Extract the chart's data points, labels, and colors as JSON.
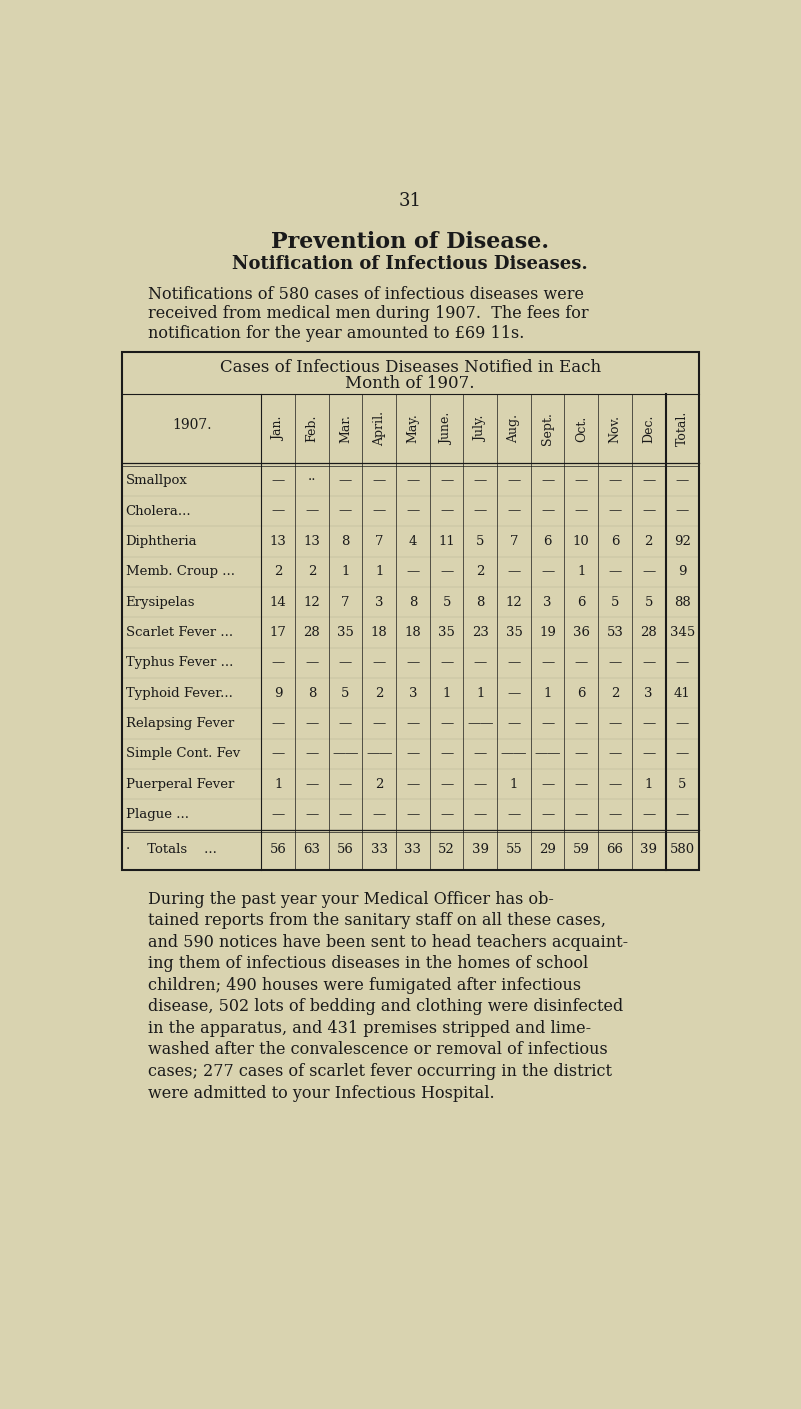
{
  "page_number": "31",
  "title1": "Prevention of Disease.",
  "title2": "Notification of Infectious Diseases.",
  "intro_text": "Notifications of 580 cases of infectious diseases were\nreceived from medical men during 1907.  The fees for\nnotification for the year amounted to £69 11s.",
  "table_title1": "Cases of Infectious Diseases Notified in Each",
  "table_title2": "Month of 1907.",
  "col_header_row": "1907.",
  "col_headers": [
    "Jan.",
    "Feb.",
    "Mar.",
    "April.",
    "May.",
    "June.",
    "July.",
    "Aug.",
    "Sept.",
    "Oct.",
    "Nov.",
    "Dec.",
    "Total."
  ],
  "disease_names_left": [
    "Smallpox",
    "Cholera...",
    "Diphtheria",
    "Memb. Croup ...",
    "Erysipelas",
    "Scarlet Fever ...",
    "Typhus Fever ...",
    "Typhoid Fever...",
    "Relapsing Fever",
    "Simple Cont. Fev",
    "Puerperal Fever",
    "Plague ..."
  ],
  "disease_dots": [
    "...",
    "",
    "...",
    "",
    "...",
    "",
    "",
    "",
    "",
    "",
    "",
    "   ..."
  ],
  "data": [
    [
      "—",
      "··",
      "—",
      "—",
      "—",
      "—",
      "—",
      "—",
      "—",
      "—",
      "—",
      "—",
      "—"
    ],
    [
      "—",
      "—",
      "—",
      "—",
      "—",
      "—",
      "—",
      "—",
      "—",
      "—",
      "—",
      "—",
      "—"
    ],
    [
      "13",
      "13",
      "8",
      "7",
      "4",
      "11",
      "5",
      "7",
      "6",
      "10",
      "6",
      "2",
      "92"
    ],
    [
      "2",
      "2",
      "1",
      "1",
      "—",
      "—",
      "2",
      "—",
      "—",
      "1",
      "—",
      "—",
      "9"
    ],
    [
      "14",
      "12",
      "7",
      "3",
      "8",
      "5",
      "8",
      "12",
      "3",
      "6",
      "5",
      "5",
      "88"
    ],
    [
      "17",
      "28",
      "35",
      "18",
      "18",
      "35",
      "23",
      "35",
      "19",
      "36",
      "53",
      "28",
      "345"
    ],
    [
      "—",
      "—",
      "—",
      "—",
      "—",
      "—",
      "—",
      "—",
      "—",
      "—",
      "—",
      "—",
      "—"
    ],
    [
      "9",
      "8",
      "5",
      "2",
      "3",
      "1",
      "1",
      "—",
      "1",
      "6",
      "2",
      "3",
      "41"
    ],
    [
      "—",
      "—",
      "—",
      "—",
      "—",
      "—",
      "——",
      "—",
      "—",
      "—",
      "—",
      "—",
      "—"
    ],
    [
      "—",
      "—",
      "——",
      "——",
      "—",
      "—",
      "—",
      "——",
      "——",
      "—",
      "—",
      "—",
      "—"
    ],
    [
      "1",
      "—",
      "—",
      "2",
      "—",
      "—",
      "—",
      "1",
      "—",
      "—",
      "—",
      "1",
      "5"
    ],
    [
      "—",
      "—",
      "—",
      "—",
      "—",
      "—",
      "—",
      "—",
      "—",
      "—",
      "—",
      "—",
      "—"
    ]
  ],
  "totals_row": [
    "56",
    "63",
    "56",
    "33",
    "33",
    "52",
    "39",
    "55",
    "29",
    "59",
    "66",
    "39",
    "580"
  ],
  "footer_text": "During the past year your Medical Officer has ob-\ntained reports from the sanitary staff on all these cases,\nand 590 notices have been sent to head teachers acquaint-\ning them of infectious diseases in the homes of school\nchildren; 490 houses were fumigated after infectious\ndisease, 502 lots of bedding and clothing were disinfected\nin the apparatus, and 431 premises stripped and lime-\nwashed after the convalescence or removal of infectious\ncases; 277 cases of scarlet fever occurring in the district\nwere admitted to your Infectious Hospital.",
  "bg_color": "#d9d3b0",
  "text_color": "#1a1a1a"
}
